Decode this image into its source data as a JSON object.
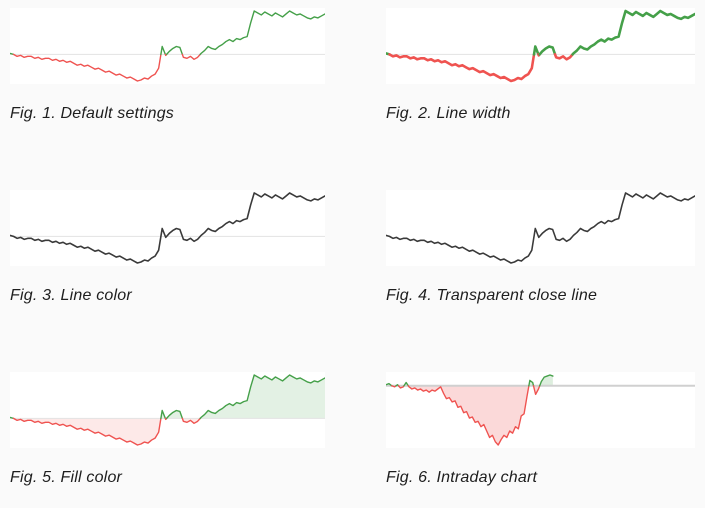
{
  "page": {
    "background_color": "#fafafa",
    "panel_color": "#ffffff"
  },
  "colors": {
    "up_line": "#45a049",
    "down_line": "#ef5350",
    "dark_line": "#3a3a3a",
    "baseline_light": "#e3e3e3",
    "baseline_strong": "#d0d0d0",
    "fill_up_light": "rgba(69,160,73,0.15)",
    "fill_down_light": "rgba(239,83,80,0.13)",
    "fill_up_strong": "rgba(69,160,73,0.18)",
    "fill_down_strong": "rgba(239,83,80,0.22)"
  },
  "chart_data": {
    "type": "line",
    "description": "Six sparkline close-price charts rendered from the same stock series with different display settings; values are offsets from the opening price (baseline = 0). No axes or tick labels are shown.",
    "baseline_value": 0,
    "series": {
      "daily": {
        "values": [
          1,
          0,
          -2,
          -1,
          -3,
          -2,
          -2,
          -4,
          -3,
          -5,
          -4,
          -4,
          -6,
          -5,
          -7,
          -6,
          -8,
          -7,
          -9,
          -11,
          -10,
          -12,
          -11,
          -13,
          -15,
          -14,
          -16,
          -18,
          -17,
          -19,
          -21,
          -20,
          -22,
          -24,
          -23,
          -25,
          -27,
          -26,
          -24,
          -25,
          -22,
          -20,
          -14,
          8,
          -1,
          3,
          6,
          8,
          7,
          -3,
          -4,
          -2,
          -5,
          -3,
          1,
          4,
          8,
          6,
          5,
          8,
          10,
          13,
          15,
          13,
          16,
          15,
          17,
          18,
          32,
          44,
          42,
          40,
          43,
          41,
          39,
          42,
          40,
          38,
          41,
          44,
          42,
          40,
          41,
          39,
          37,
          36,
          38,
          37,
          39,
          41
        ]
      },
      "intraday": {
        "values": [
          1,
          2,
          0,
          -1,
          1,
          -2,
          -1,
          3,
          -1,
          -3,
          -2,
          -4,
          -3,
          -5,
          -4,
          -6,
          -4,
          -5,
          -3,
          -1,
          -7,
          -12,
          -11,
          -15,
          -14,
          -20,
          -19,
          -25,
          -24,
          -30,
          -29,
          -34,
          -33,
          -38,
          -36,
          -42,
          -48,
          -46,
          -52,
          -55,
          -50,
          -46,
          -48,
          -42,
          -44,
          -38,
          -40,
          -28,
          -26,
          -10,
          5,
          3,
          -8,
          -3,
          4,
          8,
          9,
          10,
          9
        ]
      }
    },
    "figures": [
      {
        "caption": "Fig. 1. Default settings",
        "series": "daily",
        "coverage": 1,
        "color_mode": "updown",
        "line_width": 1.4,
        "show_baseline": true,
        "baseline_color": "#e3e3e3",
        "baseline_width": 1,
        "fill": false
      },
      {
        "caption": "Fig. 2. Line width",
        "series": "daily",
        "coverage": 1,
        "color_mode": "updown",
        "line_width": 2.6,
        "show_baseline": true,
        "baseline_color": "#e3e3e3",
        "baseline_width": 1,
        "fill": false
      },
      {
        "caption": "Fig. 3. Line color",
        "series": "daily",
        "coverage": 1,
        "color_mode": "solid",
        "line_color": "#3a3a3a",
        "line_width": 1.6,
        "show_baseline": true,
        "baseline_color": "#e3e3e3",
        "baseline_width": 1,
        "fill": false
      },
      {
        "caption": "Fig. 4. Transparent close line",
        "series": "daily",
        "coverage": 1,
        "color_mode": "solid",
        "line_color": "#3a3a3a",
        "line_width": 1.6,
        "show_baseline": false,
        "fill": false
      },
      {
        "caption": "Fig. 5. Fill color",
        "series": "daily",
        "coverage": 1,
        "color_mode": "updown",
        "line_width": 1.4,
        "show_baseline": true,
        "baseline_color": "#e3e3e3",
        "baseline_width": 1,
        "fill": true,
        "fill_up": "rgba(69,160,73,0.15)",
        "fill_down": "rgba(239,83,80,0.13)"
      },
      {
        "caption": "Fig. 6. Intraday chart",
        "series": "intraday",
        "coverage": 0.54,
        "color_mode": "updown",
        "line_width": 1.4,
        "show_baseline": true,
        "baseline_color": "#d0d0d0",
        "baseline_width": 2,
        "fill": true,
        "fill_up": "rgba(69,160,73,0.18)",
        "fill_down": "rgba(239,83,80,0.22)"
      }
    ]
  }
}
